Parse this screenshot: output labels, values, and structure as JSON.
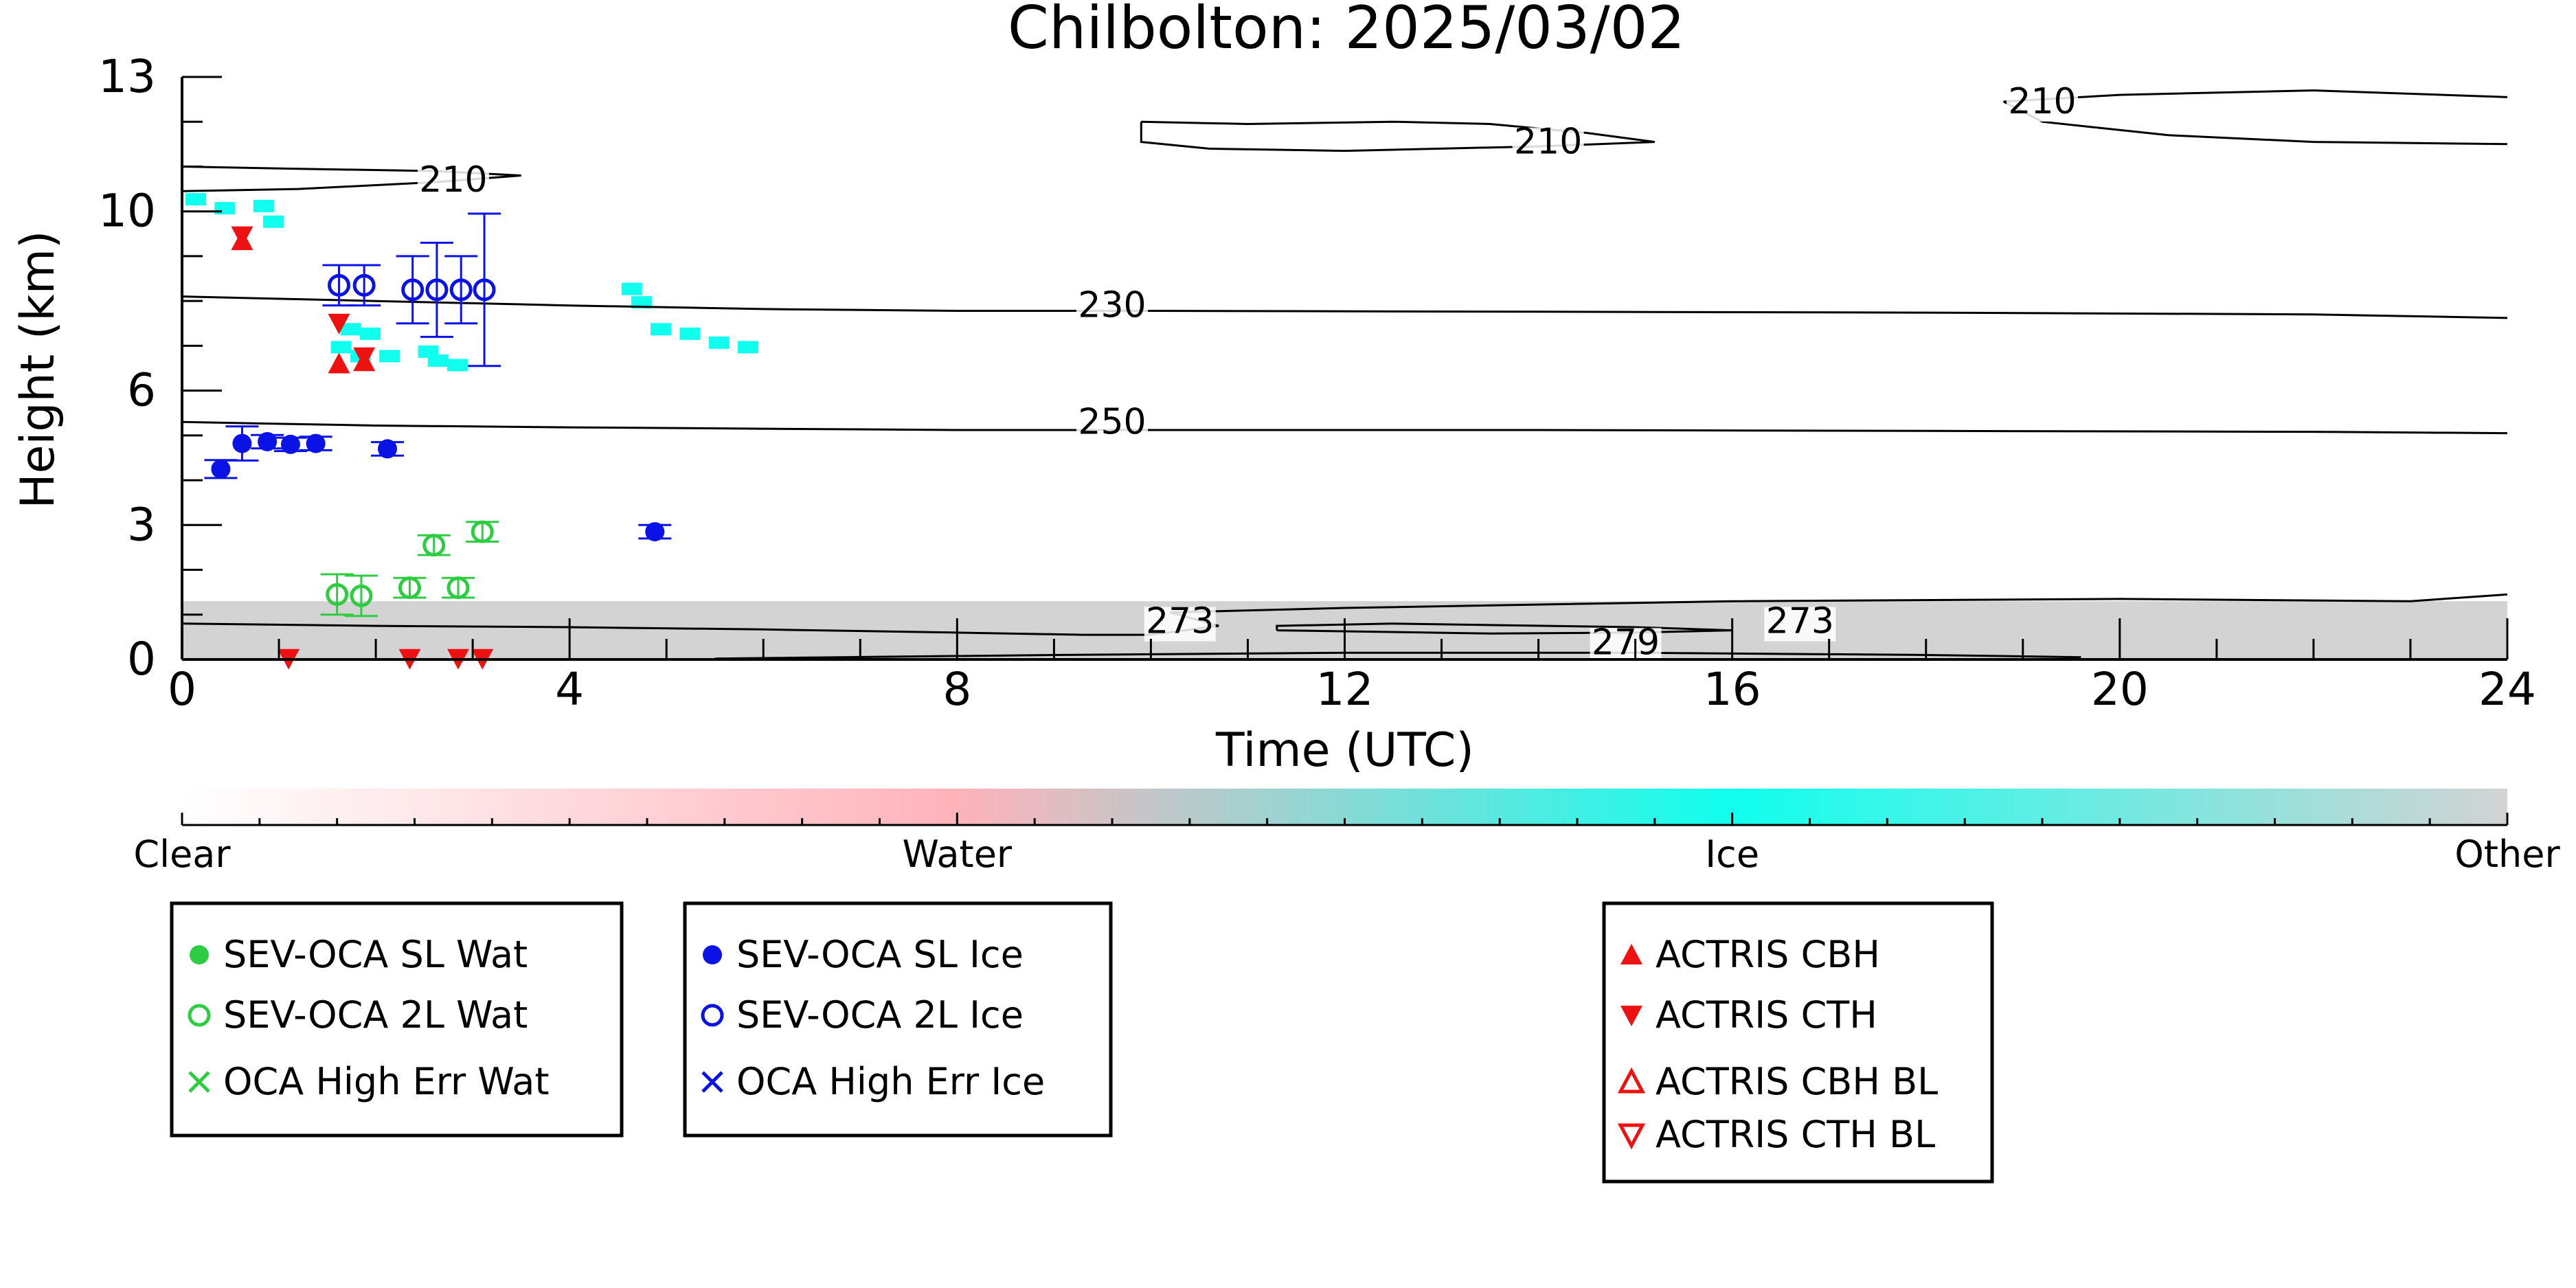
{
  "chart_data": {
    "type": "scatter",
    "title": "Chilbolton: 2025/03/02",
    "xlabel": "Time (UTC)",
    "ylabel": "Height (km)",
    "xlim": [
      0,
      24
    ],
    "ylim": [
      0,
      13
    ],
    "x_ticks": [
      0,
      4,
      8,
      12,
      16,
      20,
      24
    ],
    "y_ticks": [
      0,
      3,
      6,
      10,
      13
    ],
    "temperature_contours": [
      {
        "label": "210",
        "segments": [
          [
            [
              0,
              11.0
            ],
            [
              1.2,
              10.95
            ],
            [
              2.6,
              10.9
            ],
            [
              3.5,
              10.8
            ],
            [
              2.6,
              10.65
            ],
            [
              1.2,
              10.5
            ],
            [
              0,
              10.45
            ]
          ],
          [
            [
              9.9,
              12.0
            ],
            [
              11.0,
              11.95
            ],
            [
              12.5,
              12.0
            ],
            [
              13.5,
              11.95
            ],
            [
              14.5,
              11.75
            ],
            [
              15.2,
              11.55
            ],
            [
              14.0,
              11.45
            ],
            [
              12.0,
              11.35
            ],
            [
              10.6,
              11.4
            ],
            [
              9.9,
              11.55
            ],
            [
              9.9,
              12.0
            ]
          ],
          [
            [
              18.8,
              12.45
            ],
            [
              20.0,
              12.6
            ],
            [
              22.0,
              12.7
            ],
            [
              24,
              12.55
            ]
          ],
          [
            [
              18.8,
              12.45
            ],
            [
              19.2,
              12.0
            ],
            [
              20.5,
              11.7
            ],
            [
              22.0,
              11.55
            ],
            [
              24,
              11.5
            ]
          ]
        ],
        "label_pos": [
          [
            2.8,
            10.5
          ],
          [
            14.1,
            11.35
          ],
          [
            19.2,
            12.25
          ]
        ]
      },
      {
        "label": "230",
        "segments": [
          [
            [
              0,
              8.1
            ],
            [
              2.0,
              8.0
            ],
            [
              4.0,
              7.9
            ],
            [
              6.0,
              7.82
            ],
            [
              8.0,
              7.78
            ],
            [
              10.0,
              7.78
            ],
            [
              14.0,
              7.76
            ],
            [
              18.0,
              7.74
            ],
            [
              22.0,
              7.7
            ],
            [
              24,
              7.62
            ]
          ]
        ],
        "label_pos": [
          [
            9.6,
            7.7
          ]
        ]
      },
      {
        "label": "250",
        "segments": [
          [
            [
              0,
              5.3
            ],
            [
              2.0,
              5.22
            ],
            [
              4.0,
              5.18
            ],
            [
              6.0,
              5.15
            ],
            [
              8.0,
              5.12
            ],
            [
              10.0,
              5.12
            ],
            [
              14.0,
              5.12
            ],
            [
              18.0,
              5.1
            ],
            [
              22.0,
              5.08
            ],
            [
              24,
              5.05
            ]
          ]
        ],
        "label_pos": [
          [
            9.6,
            5.1
          ]
        ]
      },
      {
        "label": "273",
        "segments": [
          [
            [
              0,
              0.8
            ],
            [
              2.0,
              0.75
            ],
            [
              4.0,
              0.72
            ],
            [
              6.0,
              0.67
            ],
            [
              8.0,
              0.6
            ],
            [
              9.3,
              0.55
            ],
            [
              10.0,
              0.55
            ],
            [
              10.7,
              0.75
            ],
            [
              10.2,
              1.05
            ],
            [
              12.0,
              1.15
            ],
            [
              16.0,
              1.3
            ],
            [
              20.0,
              1.35
            ],
            [
              23.0,
              1.3
            ],
            [
              24,
              1.45
            ]
          ],
          [
            [
              11.3,
              0.65
            ],
            [
              13.5,
              0.58
            ],
            [
              15.0,
              0.6
            ],
            [
              16.0,
              0.65
            ],
            [
              15.0,
              0.72
            ],
            [
              12.5,
              0.8
            ],
            [
              11.3,
              0.75
            ],
            [
              11.3,
              0.65
            ]
          ]
        ],
        "label_pos": [
          [
            10.3,
            0.65
          ],
          [
            16.7,
            0.65
          ]
        ]
      },
      {
        "label": "279",
        "segments": [
          [
            [
              5.5,
              0.02
            ],
            [
              9.0,
              0.1
            ],
            [
              12.0,
              0.15
            ],
            [
              15.0,
              0.15
            ],
            [
              18.0,
              0.1
            ],
            [
              19.6,
              0.05
            ]
          ]
        ],
        "label_pos": [
          [
            14.9,
            0.18
          ]
        ]
      }
    ],
    "cloud_category_regions": [
      {
        "category": "Ice",
        "color": "#11ffee",
        "points": [
          [
            0.1,
            10.3
          ],
          [
            0.4,
            10.1
          ],
          [
            0.8,
            10.15
          ],
          [
            0.9,
            9.8
          ],
          [
            1.7,
            7.4
          ],
          [
            1.6,
            7.0
          ],
          [
            1.8,
            6.8
          ],
          [
            1.9,
            7.3
          ],
          [
            2.1,
            6.8
          ],
          [
            2.5,
            6.9
          ],
          [
            2.6,
            6.7
          ],
          [
            2.8,
            6.6
          ],
          [
            4.6,
            8.3
          ],
          [
            4.7,
            8.0
          ],
          [
            4.9,
            7.4
          ],
          [
            5.2,
            7.3
          ],
          [
            5.5,
            7.1
          ],
          [
            5.8,
            7.0
          ]
        ]
      },
      {
        "category": "Other",
        "color": "#d3d3d3",
        "range_km": [
          0,
          1.3
        ]
      }
    ],
    "colorbar": {
      "labels": [
        "Clear",
        "Water",
        "Ice",
        "Other"
      ],
      "colors": [
        "#ffffff",
        "#ffb3bb",
        "#11ffee",
        "#d3d3d3"
      ]
    },
    "series": [
      {
        "name": "SEV-OCA SL Wat",
        "color": "#2ecc40",
        "marker": "filled-circle",
        "points": []
      },
      {
        "name": "SEV-OCA 2L Wat",
        "color": "#2ecc40",
        "marker": "open-circle",
        "points": [
          {
            "x": 1.6,
            "y": 1.45,
            "err": 0.45
          },
          {
            "x": 1.85,
            "y": 1.42,
            "err": 0.45
          },
          {
            "x": 2.35,
            "y": 1.6,
            "err": 0.22
          },
          {
            "x": 2.6,
            "y": 2.55,
            "err": 0.22
          },
          {
            "x": 2.85,
            "y": 1.6,
            "err": 0.22
          },
          {
            "x": 3.1,
            "y": 2.85,
            "err": 0.22
          }
        ]
      },
      {
        "name": "OCA High Err Wat",
        "color": "#2ecc40",
        "marker": "cross",
        "points": []
      },
      {
        "name": "SEV-OCA SL Ice",
        "color": "#0a12e6",
        "marker": "filled-circle",
        "points": [
          {
            "x": 0.4,
            "y": 4.25,
            "err": 0.2
          },
          {
            "x": 0.62,
            "y": 4.82,
            "err": 0.38
          },
          {
            "x": 0.88,
            "y": 4.86,
            "err": 0.15
          },
          {
            "x": 1.12,
            "y": 4.8,
            "err": 0.15
          },
          {
            "x": 1.38,
            "y": 4.82,
            "err": 0.15
          },
          {
            "x": 2.12,
            "y": 4.7,
            "err": 0.15
          },
          {
            "x": 4.88,
            "y": 2.85,
            "err": 0.15
          }
        ]
      },
      {
        "name": "SEV-OCA 2L Ice",
        "color": "#0a12e6",
        "marker": "open-circle",
        "points": [
          {
            "x": 1.62,
            "y": 8.35,
            "err": 0.45
          },
          {
            "x": 1.88,
            "y": 8.35,
            "err": 0.45
          },
          {
            "x": 2.38,
            "y": 8.25,
            "err": 0.75
          },
          {
            "x": 2.63,
            "y": 8.25,
            "err": 1.05
          },
          {
            "x": 2.88,
            "y": 8.25,
            "err": 0.75
          },
          {
            "x": 3.12,
            "y": 8.25,
            "err": 1.7
          }
        ]
      },
      {
        "name": "OCA High Err Ice",
        "color": "#0a12e6",
        "marker": "cross",
        "points": []
      },
      {
        "name": "ACTRIS CBH",
        "color": "#ee1111",
        "marker": "filled-triangle-up",
        "points": [
          {
            "x": 0.62,
            "y": 9.35
          },
          {
            "x": 1.62,
            "y": 6.6
          },
          {
            "x": 1.88,
            "y": 6.65
          }
        ]
      },
      {
        "name": "ACTRIS CTH",
        "color": "#ee1111",
        "marker": "filled-triangle-down",
        "points": [
          {
            "x": 0.62,
            "y": 9.45
          },
          {
            "x": 1.62,
            "y": 7.5
          },
          {
            "x": 1.88,
            "y": 6.75
          },
          {
            "x": 1.1,
            "y": 0.02
          },
          {
            "x": 2.35,
            "y": 0.02
          },
          {
            "x": 2.85,
            "y": 0.02
          },
          {
            "x": 3.1,
            "y": 0.02
          }
        ]
      },
      {
        "name": "ACTRIS CBH BL",
        "color": "#ee1111",
        "marker": "open-triangle-up",
        "points": []
      },
      {
        "name": "ACTRIS CTH BL",
        "color": "#ee1111",
        "marker": "open-triangle-down",
        "points": []
      }
    ],
    "legend_groups": [
      {
        "items": [
          "SEV-OCA SL Wat",
          "SEV-OCA 2L Wat",
          "OCA High Err Wat"
        ]
      },
      {
        "items": [
          "SEV-OCA SL Ice",
          "SEV-OCA 2L Ice",
          "OCA High Err Ice"
        ]
      },
      {
        "items": [
          "ACTRIS CBH",
          "ACTRIS CTH",
          "ACTRIS CBH BL",
          "ACTRIS CTH BL"
        ]
      }
    ]
  }
}
